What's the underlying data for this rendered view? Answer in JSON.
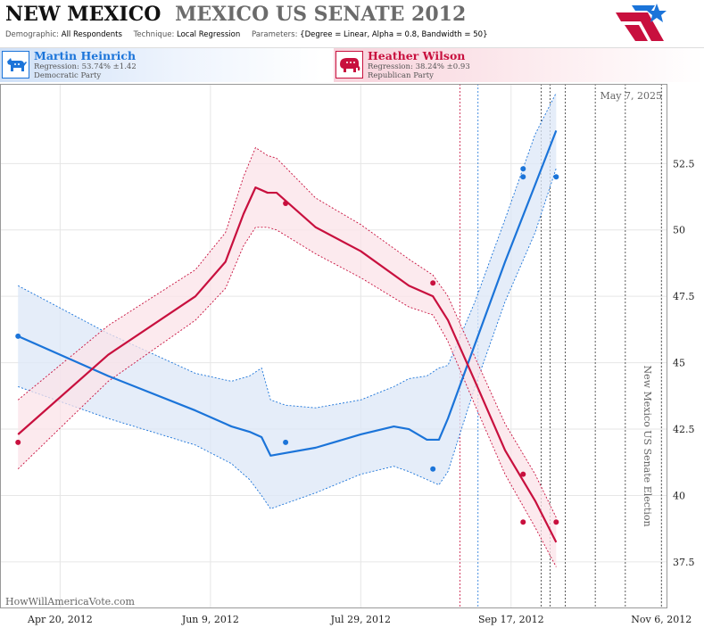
{
  "header": {
    "state": "NEW MEXICO",
    "race": "MEXICO US SENATE 2012",
    "demographic_label": "Demographic:",
    "demographic_value": "All Respondents",
    "technique_label": "Technique:",
    "technique_value": "Local Regression",
    "parameters_label": "Parameters:",
    "parameters_value": "{Degree = Linear, Alpha = 0.8, Bandwidth = 50}"
  },
  "candidates": {
    "dem": {
      "name": "Martin Heinrich",
      "regression": "Regression: 53.74% ±1.42",
      "party": "Democratic Party",
      "color": "#1b74d9",
      "icon": "donkey-icon"
    },
    "rep": {
      "name": "Heather Wilson",
      "regression": "Regression: 38.24% ±0.93",
      "party": "Republican Party",
      "color": "#c8103e",
      "icon": "elephant-icon"
    }
  },
  "chart_data": {
    "type": "line",
    "date_label": "May 7, 2025",
    "watermark": "HowWillAmericaVote.com",
    "election_label": "New Mexico US Senate Election",
    "x_tick_labels": [
      "Apr 20, 2012",
      "Jun 9, 2012",
      "Jul 29, 2012",
      "Sep 17, 2012",
      "Nov 6, 2012"
    ],
    "x_tick_dates": [
      "2012-04-20",
      "2012-06-09",
      "2012-07-29",
      "2012-09-17",
      "2012-11-06"
    ],
    "xlim": [
      "2012-03-31",
      "2012-11-08"
    ],
    "y_ticks": [
      37.5,
      40,
      42.5,
      45,
      47.5,
      50,
      52.5
    ],
    "y_tick_labels": [
      "37.5",
      "40",
      "42.5",
      "45",
      "47.5",
      "50",
      "52.5"
    ],
    "ylim": [
      35.75,
      55.5
    ],
    "grid": true,
    "vertical_markers": [
      {
        "date": "2012-08-31",
        "color": "#c8103e"
      },
      {
        "date": "2012-09-06",
        "color": "#1b74d9"
      },
      {
        "date": "2012-09-27",
        "color": "#333"
      },
      {
        "date": "2012-09-30",
        "color": "#333"
      },
      {
        "date": "2012-10-05",
        "color": "#333"
      },
      {
        "date": "2012-10-15",
        "color": "#333"
      },
      {
        "date": "2012-10-25",
        "color": "#333"
      },
      {
        "date": "2012-11-06",
        "color": "#333"
      }
    ],
    "series": [
      {
        "name": "Martin Heinrich",
        "color": "#1b74d9",
        "fill": "#dce7f7",
        "points": [
          {
            "x": "2012-04-06",
            "y": 46.0
          },
          {
            "x": "2012-07-04",
            "y": 42.0
          },
          {
            "x": "2012-08-22",
            "y": 41.0
          },
          {
            "x": "2012-09-21",
            "y": 52.3
          },
          {
            "x": "2012-09-21",
            "y": 52.0
          },
          {
            "x": "2012-10-02",
            "y": 52.0
          }
        ],
        "fit": [
          {
            "x": "2012-04-06",
            "y": 46.0,
            "lo": 44.1,
            "hi": 47.9
          },
          {
            "x": "2012-05-06",
            "y": 44.5,
            "lo": 42.9,
            "hi": 46.1
          },
          {
            "x": "2012-06-04",
            "y": 43.2,
            "lo": 41.9,
            "hi": 44.6
          },
          {
            "x": "2012-06-16",
            "y": 42.6,
            "lo": 41.2,
            "hi": 44.3
          },
          {
            "x": "2012-06-22",
            "y": 42.4,
            "lo": 40.6,
            "hi": 44.5
          },
          {
            "x": "2012-06-26",
            "y": 42.2,
            "lo": 40.0,
            "hi": 44.8
          },
          {
            "x": "2012-06-29",
            "y": 41.5,
            "lo": 39.5,
            "hi": 43.6
          },
          {
            "x": "2012-07-04",
            "y": 41.6,
            "lo": 39.7,
            "hi": 43.4
          },
          {
            "x": "2012-07-14",
            "y": 41.8,
            "lo": 40.1,
            "hi": 43.3
          },
          {
            "x": "2012-07-29",
            "y": 42.3,
            "lo": 40.8,
            "hi": 43.6
          },
          {
            "x": "2012-08-09",
            "y": 42.6,
            "lo": 41.1,
            "hi": 44.1
          },
          {
            "x": "2012-08-14",
            "y": 42.5,
            "lo": 40.9,
            "hi": 44.4
          },
          {
            "x": "2012-08-20",
            "y": 42.1,
            "lo": 40.6,
            "hi": 44.5
          },
          {
            "x": "2012-08-24",
            "y": 42.1,
            "lo": 40.4,
            "hi": 44.8
          },
          {
            "x": "2012-08-27",
            "y": 42.9,
            "lo": 40.9,
            "hi": 44.9
          },
          {
            "x": "2012-09-05",
            "y": 45.7,
            "lo": 44.1,
            "hi": 47.3
          },
          {
            "x": "2012-09-15",
            "y": 48.8,
            "lo": 47.3,
            "hi": 50.4
          },
          {
            "x": "2012-09-25",
            "y": 51.7,
            "lo": 49.9,
            "hi": 53.6
          },
          {
            "x": "2012-10-02",
            "y": 53.74,
            "lo": 52.32,
            "hi": 55.16
          }
        ]
      },
      {
        "name": "Heather Wilson",
        "color": "#c8103e",
        "fill": "#fbe3e8",
        "points": [
          {
            "x": "2012-04-06",
            "y": 42.0
          },
          {
            "x": "2012-07-04",
            "y": 51.0
          },
          {
            "x": "2012-08-22",
            "y": 48.0
          },
          {
            "x": "2012-09-21",
            "y": 40.8
          },
          {
            "x": "2012-09-21",
            "y": 39.0
          },
          {
            "x": "2012-10-02",
            "y": 39.0
          }
        ],
        "fit": [
          {
            "x": "2012-04-06",
            "y": 42.3,
            "lo": 41.0,
            "hi": 43.6
          },
          {
            "x": "2012-05-06",
            "y": 45.3,
            "lo": 44.3,
            "hi": 46.4
          },
          {
            "x": "2012-06-04",
            "y": 47.5,
            "lo": 46.6,
            "hi": 48.5
          },
          {
            "x": "2012-06-14",
            "y": 48.8,
            "lo": 47.8,
            "hi": 49.9
          },
          {
            "x": "2012-06-20",
            "y": 50.6,
            "lo": 49.4,
            "hi": 52.0
          },
          {
            "x": "2012-06-24",
            "y": 51.6,
            "lo": 50.1,
            "hi": 53.1
          },
          {
            "x": "2012-06-28",
            "y": 51.4,
            "lo": 50.1,
            "hi": 52.8
          },
          {
            "x": "2012-07-01",
            "y": 51.4,
            "lo": 50.0,
            "hi": 52.7
          },
          {
            "x": "2012-07-14",
            "y": 50.1,
            "lo": 49.1,
            "hi": 51.2
          },
          {
            "x": "2012-07-29",
            "y": 49.2,
            "lo": 48.2,
            "hi": 50.2
          },
          {
            "x": "2012-08-14",
            "y": 47.9,
            "lo": 47.1,
            "hi": 48.9
          },
          {
            "x": "2012-08-22",
            "y": 47.5,
            "lo": 46.8,
            "hi": 48.3
          },
          {
            "x": "2012-08-27",
            "y": 46.6,
            "lo": 45.8,
            "hi": 47.5
          },
          {
            "x": "2012-09-05",
            "y": 44.3,
            "lo": 43.4,
            "hi": 45.2
          },
          {
            "x": "2012-09-15",
            "y": 41.7,
            "lo": 40.8,
            "hi": 42.7
          },
          {
            "x": "2012-09-25",
            "y": 39.8,
            "lo": 38.8,
            "hi": 40.8
          },
          {
            "x": "2012-10-02",
            "y": 38.24,
            "lo": 37.31,
            "hi": 39.17
          }
        ]
      }
    ]
  }
}
